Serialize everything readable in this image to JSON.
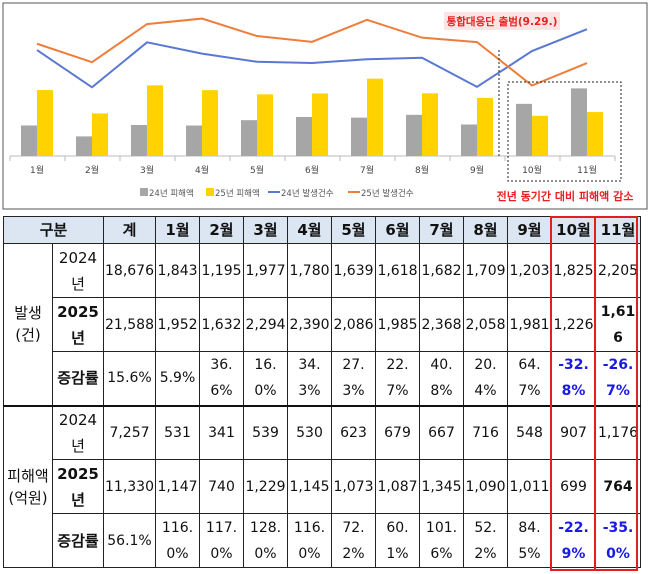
{
  "chart_data": {
    "type": "bar",
    "categories": [
      "1월",
      "2월",
      "3월",
      "4월",
      "5월",
      "6월",
      "7월",
      "8월",
      "9월",
      "10월",
      "11월"
    ],
    "series": [
      {
        "name": "24년 피해액",
        "kind": "bar",
        "color": "#a6a6a6",
        "values": [
          531,
          341,
          539,
          530,
          623,
          679,
          667,
          716,
          548,
          907,
          1176
        ]
      },
      {
        "name": "25년 피해액",
        "kind": "bar",
        "color": "#ffd200",
        "values": [
          1147,
          740,
          1229,
          1145,
          1073,
          1087,
          1345,
          1090,
          1011,
          699,
          764
        ]
      },
      {
        "name": "24년 발생건수",
        "kind": "line",
        "color": "#5a78d2",
        "values": [
          1843,
          1195,
          1977,
          1780,
          1639,
          1618,
          1682,
          1709,
          1203,
          1825,
          2205
        ]
      },
      {
        "name": "25년 발생건수",
        "kind": "line",
        "color": "#ef7d3a",
        "values": [
          1952,
          1632,
          2294,
          2390,
          2086,
          1985,
          2368,
          2058,
          1981,
          1226,
          1616
        ]
      }
    ],
    "legend_position": "bottom",
    "grid": false,
    "annotations": {
      "launch": "통합대응단 출범(9.29.)",
      "decrease": "전년 동기간 대비 피해액 감소"
    },
    "annotation_color": "#e82020"
  },
  "table": {
    "header": {
      "group": "구분",
      "total": "계",
      "months": [
        "1월",
        "2월",
        "3월",
        "4월",
        "5월",
        "6월",
        "7월",
        "8월",
        "9월",
        "10월",
        "11월"
      ]
    },
    "sections": [
      {
        "label": "발생\n(건)",
        "rows": [
          {
            "year": "2024년",
            "total": "18,676",
            "values": [
              "1,843",
              "1,195",
              "1,977",
              "1,780",
              "1,639",
              "1,618",
              "1,682",
              "1,709",
              "1,203",
              "1,825",
              "2,205"
            ]
          },
          {
            "year": "2025년",
            "total": "21,588",
            "values": [
              "1,952",
              "1,632",
              "2,294",
              "2,390",
              "2,086",
              "1,985",
              "2,368",
              "2,058",
              "1,981",
              "1,226",
              "1,616"
            ]
          },
          {
            "year": "증감률",
            "total": "15.6%",
            "values": [
              "5.9%",
              "36.6%",
              "16.0%",
              "34.3%",
              "27.3%",
              "22.7%",
              "40.8%",
              "20.4%",
              "64.7%",
              "-32.8%",
              "-26.7%"
            ]
          }
        ]
      },
      {
        "label": "피해액\n(억원)",
        "rows": [
          {
            "year": "2024년",
            "total": "7,257",
            "values": [
              "531",
              "341",
              "539",
              "530",
              "623",
              "679",
              "667",
              "716",
              "548",
              "907",
              "1,176"
            ]
          },
          {
            "year": "2025년",
            "total": "11,330",
            "values": [
              "1,147",
              "740",
              "1,229",
              "1,145",
              "1,073",
              "1,087",
              "1,345",
              "1,090",
              "1,011",
              "699",
              "764"
            ]
          },
          {
            "year": "증감률",
            "total": "56.1%",
            "values": [
              "116.0%",
              "117.0%",
              "128.0%",
              "116.0%",
              "72.2%",
              "60.1%",
              "101.6%",
              "52.2%",
              "84.5%",
              "-22.9%",
              "-35.0%"
            ]
          }
        ]
      }
    ]
  }
}
